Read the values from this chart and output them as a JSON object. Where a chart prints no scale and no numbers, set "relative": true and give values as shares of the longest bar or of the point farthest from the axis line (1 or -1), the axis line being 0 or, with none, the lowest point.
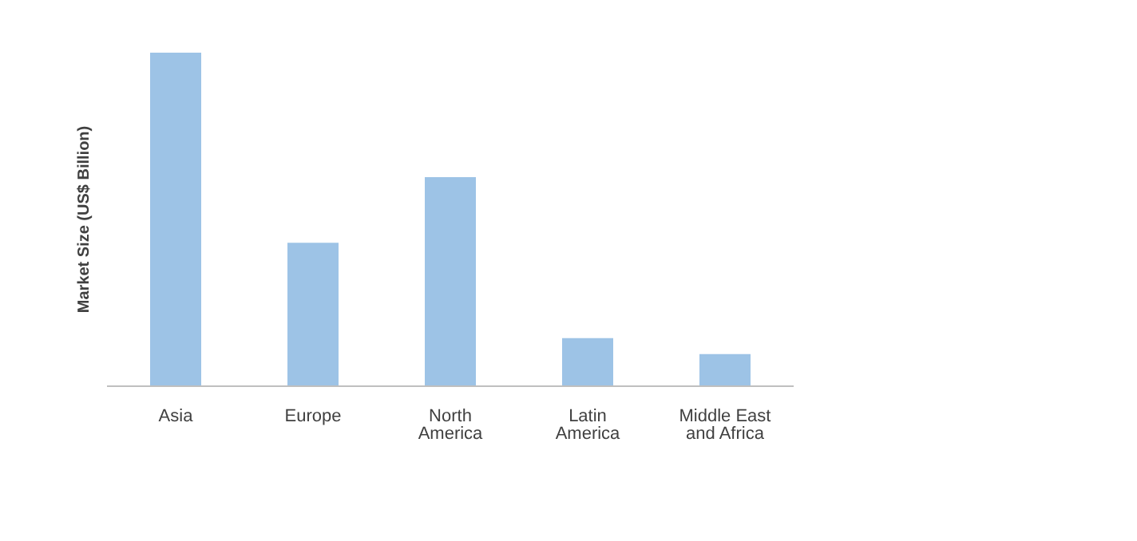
{
  "chart_data": {
    "type": "bar",
    "ylabel": "Market Size (US$ Billion)",
    "categories": [
      "Asia",
      "Europe",
      "North America",
      "Latin America",
      "Middle East and Africa"
    ],
    "values": [
      1,
      0.43,
      0.627,
      0.144,
      0.096
    ],
    "color": "#9dc3e6",
    "relative": true,
    "grid": false,
    "legend": false
  }
}
